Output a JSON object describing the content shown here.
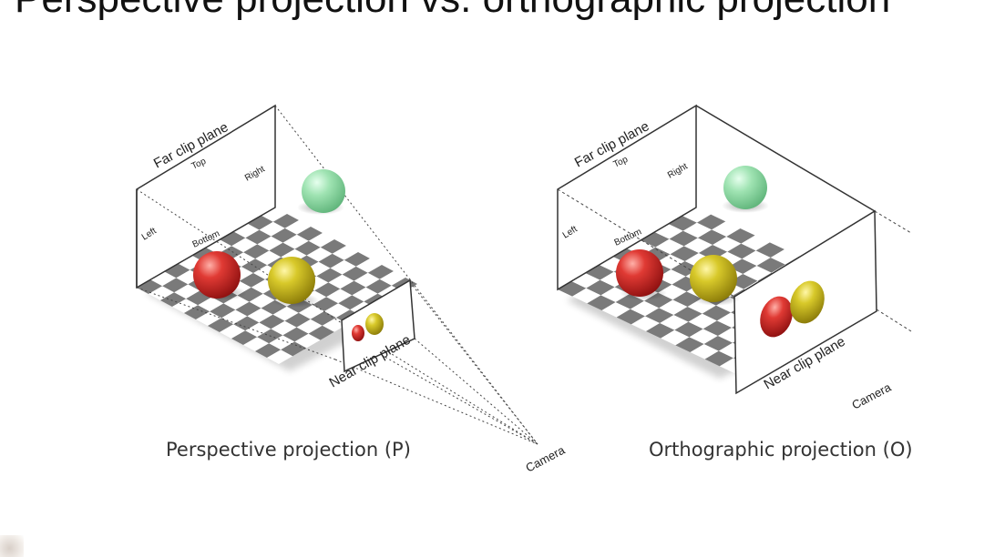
{
  "slide": {
    "title": "Perspective projection vs. orthographic projection"
  },
  "perspective": {
    "far_label": "Far clip plane",
    "top_label": "Top",
    "right_label": "Right",
    "left_label": "Left",
    "bottom_label": "Bottom",
    "near_label": "Near clip plane",
    "camera_label": "Camera",
    "caption": "Perspective projection (P)"
  },
  "orthographic": {
    "far_label": "Far clip plane",
    "top_label": "Top",
    "right_label": "Right",
    "left_label": "Left",
    "bottom_label": "Bottom",
    "near_label": "Near clip plane",
    "camera_label": "Camera",
    "caption": "Orthographic projection (O)"
  },
  "colors": {
    "red_sphere": "#d42a2a",
    "yellow_sphere": "#c9b61c",
    "green_sphere": "#7fd79a",
    "checker_dark": "#7a7a7a",
    "checker_light": "#ffffff"
  }
}
